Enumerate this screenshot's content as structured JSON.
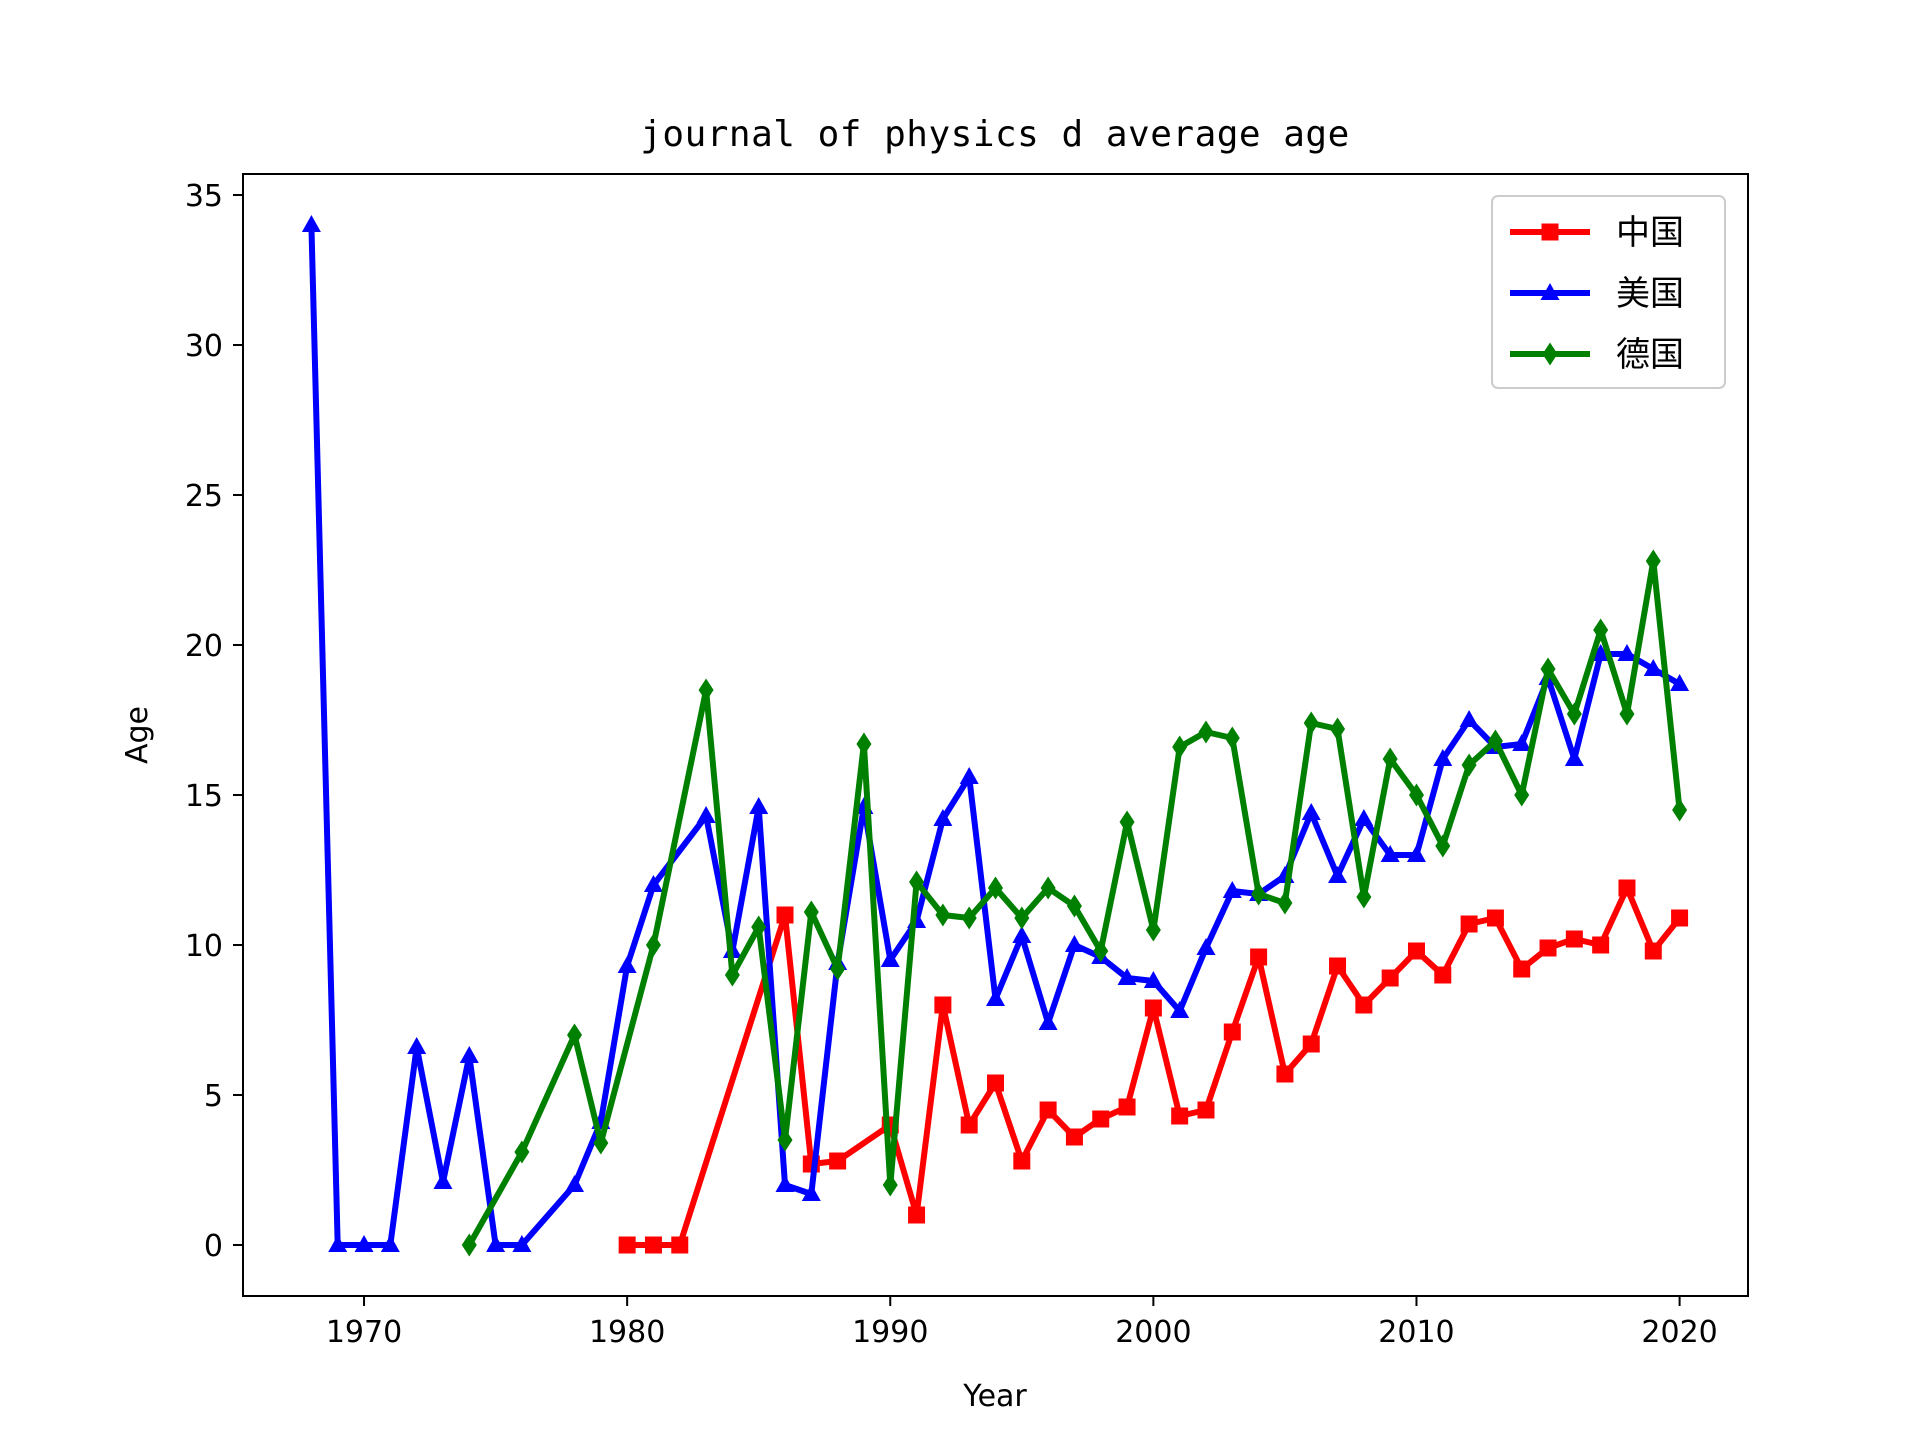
{
  "chart_data": {
    "type": "line",
    "title": "journal of physics d average age",
    "xlabel": "Year",
    "ylabel": "Age",
    "xlim": [
      1965.4,
      2022.6
    ],
    "ylim": [
      -1.7,
      35.7
    ],
    "xticks": [
      1970,
      1980,
      1990,
      2000,
      2010,
      2020
    ],
    "yticks": [
      0,
      5,
      10,
      15,
      20,
      25,
      30,
      35
    ],
    "grid": false,
    "legend_position": "top-right",
    "series": [
      {
        "name": "中国",
        "color": "#ff0000",
        "marker": "square",
        "points": [
          [
            1980,
            0
          ],
          [
            1981,
            0
          ],
          [
            1982,
            0
          ],
          [
            1986,
            11
          ],
          [
            1987,
            2.7
          ],
          [
            1988,
            2.8
          ],
          [
            1990,
            4
          ],
          [
            1991,
            1
          ],
          [
            1992,
            8
          ],
          [
            1993,
            4
          ],
          [
            1994,
            5.4
          ],
          [
            1995,
            2.8
          ],
          [
            1996,
            4.5
          ],
          [
            1997,
            3.6
          ],
          [
            1998,
            4.2
          ],
          [
            1999,
            4.6
          ],
          [
            2000,
            7.9
          ],
          [
            2001,
            4.3
          ],
          [
            2002,
            4.5
          ],
          [
            2003,
            7.1
          ],
          [
            2004,
            9.6
          ],
          [
            2005,
            5.7
          ],
          [
            2006,
            6.7
          ],
          [
            2007,
            9.3
          ],
          [
            2008,
            8
          ],
          [
            2009,
            8.9
          ],
          [
            2010,
            9.8
          ],
          [
            2011,
            9
          ],
          [
            2012,
            10.7
          ],
          [
            2013,
            10.9
          ],
          [
            2014,
            9.2
          ],
          [
            2015,
            9.9
          ],
          [
            2016,
            10.2
          ],
          [
            2017,
            10
          ],
          [
            2018,
            11.9
          ],
          [
            2019,
            9.8
          ],
          [
            2020,
            10.9
          ]
        ]
      },
      {
        "name": "美国",
        "color": "#0000ff",
        "marker": "triangle",
        "points": [
          [
            1968,
            34
          ],
          [
            1969,
            0
          ],
          [
            1970,
            0
          ],
          [
            1971,
            0
          ],
          [
            1972,
            6.6
          ],
          [
            1973,
            2.1
          ],
          [
            1974,
            6.3
          ],
          [
            1975,
            0
          ],
          [
            1976,
            0
          ],
          [
            1978,
            2
          ],
          [
            1979,
            4.1
          ],
          [
            1980,
            9.3
          ],
          [
            1981,
            12
          ],
          [
            1983,
            14.3
          ],
          [
            1984,
            9.8
          ],
          [
            1985,
            14.6
          ],
          [
            1986,
            2
          ],
          [
            1987,
            1.7
          ],
          [
            1988,
            9.4
          ],
          [
            1989,
            14.6
          ],
          [
            1990,
            9.5
          ],
          [
            1991,
            10.8
          ],
          [
            1992,
            14.2
          ],
          [
            1993,
            15.6
          ],
          [
            1994,
            8.2
          ],
          [
            1995,
            10.3
          ],
          [
            1996,
            7.4
          ],
          [
            1997,
            10
          ],
          [
            1998,
            9.6
          ],
          [
            1999,
            8.9
          ],
          [
            2000,
            8.8
          ],
          [
            2001,
            7.8
          ],
          [
            2002,
            9.9
          ],
          [
            2003,
            11.8
          ],
          [
            2004,
            11.7
          ],
          [
            2005,
            12.3
          ],
          [
            2006,
            14.4
          ],
          [
            2007,
            12.3
          ],
          [
            2008,
            14.2
          ],
          [
            2009,
            13
          ],
          [
            2010,
            13
          ],
          [
            2011,
            16.2
          ],
          [
            2012,
            17.5
          ],
          [
            2013,
            16.6
          ],
          [
            2014,
            16.7
          ],
          [
            2015,
            18.9
          ],
          [
            2016,
            16.2
          ],
          [
            2017,
            19.7
          ],
          [
            2018,
            19.7
          ],
          [
            2019,
            19.2
          ],
          [
            2020,
            18.7
          ]
        ]
      },
      {
        "name": "德国",
        "color": "#008000",
        "marker": "diamond",
        "points": [
          [
            1974,
            0
          ],
          [
            1976,
            3.1
          ],
          [
            1978,
            7
          ],
          [
            1979,
            3.4
          ],
          [
            1981,
            10
          ],
          [
            1983,
            18.5
          ],
          [
            1984,
            9
          ],
          [
            1985,
            10.6
          ],
          [
            1986,
            3.5
          ],
          [
            1987,
            11.1
          ],
          [
            1988,
            9.2
          ],
          [
            1989,
            16.7
          ],
          [
            1990,
            2
          ],
          [
            1991,
            12.1
          ],
          [
            1992,
            11
          ],
          [
            1993,
            10.9
          ],
          [
            1994,
            11.9
          ],
          [
            1995,
            10.9
          ],
          [
            1996,
            11.9
          ],
          [
            1997,
            11.3
          ],
          [
            1998,
            9.8
          ],
          [
            1999,
            14.1
          ],
          [
            2000,
            10.5
          ],
          [
            2001,
            16.6
          ],
          [
            2002,
            17.1
          ],
          [
            2003,
            16.9
          ],
          [
            2004,
            11.7
          ],
          [
            2005,
            11.4
          ],
          [
            2006,
            17.4
          ],
          [
            2007,
            17.2
          ],
          [
            2008,
            11.6
          ],
          [
            2009,
            16.2
          ],
          [
            2010,
            15
          ],
          [
            2011,
            13.3
          ],
          [
            2012,
            16
          ],
          [
            2013,
            16.8
          ],
          [
            2014,
            15
          ],
          [
            2015,
            19.2
          ],
          [
            2016,
            17.7
          ],
          [
            2017,
            20.5
          ],
          [
            2018,
            17.7
          ],
          [
            2019,
            22.8
          ],
          [
            2020,
            14.5
          ]
        ]
      }
    ]
  }
}
